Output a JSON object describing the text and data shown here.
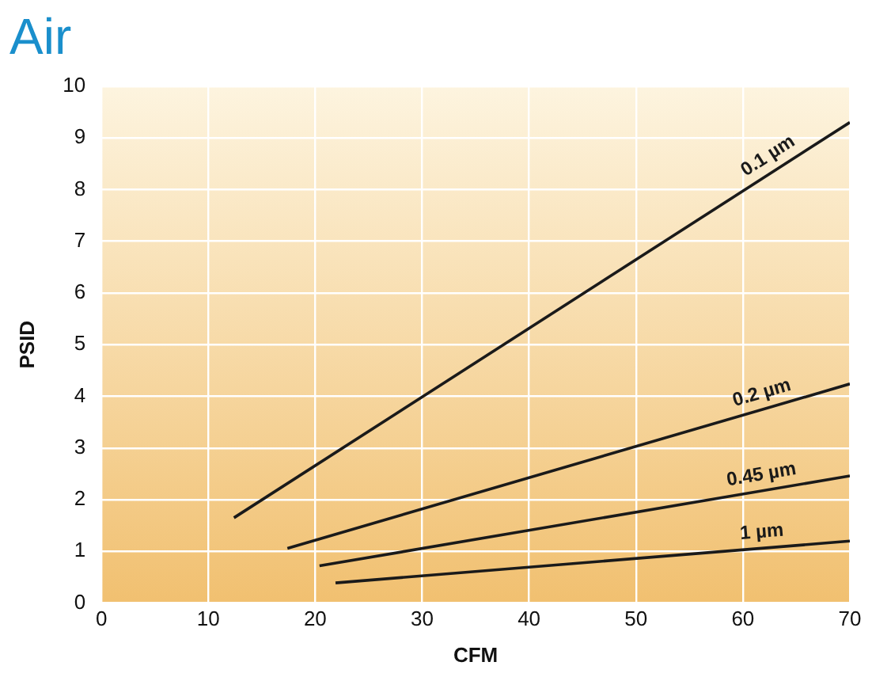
{
  "chart_data": {
    "type": "line",
    "title": "Air",
    "xlabel": "CFM",
    "ylabel": "PSID",
    "xlim": [
      0,
      70
    ],
    "xticks": [
      0,
      10,
      20,
      30,
      40,
      50,
      60,
      70
    ],
    "ylim": [
      0,
      10
    ],
    "yticks": [
      0,
      1,
      2,
      3,
      4,
      5,
      6,
      7,
      8,
      9,
      10
    ],
    "grid": true,
    "series": [
      {
        "name": "0.1 µm",
        "color": "#1a1a1a",
        "x": [
          12.4,
          70
        ],
        "values": [
          1.65,
          9.3
        ]
      },
      {
        "name": "0.2 µm",
        "color": "#1a1a1a",
        "x": [
          17.4,
          70
        ],
        "values": [
          1.06,
          4.24
        ]
      },
      {
        "name": "0.45 µm",
        "color": "#1a1a1a",
        "x": [
          20.4,
          70
        ],
        "values": [
          0.72,
          2.46
        ]
      },
      {
        "name": "1 µm",
        "color": "#1a1a1a",
        "x": [
          21.9,
          70
        ],
        "values": [
          0.39,
          1.2
        ]
      }
    ]
  }
}
